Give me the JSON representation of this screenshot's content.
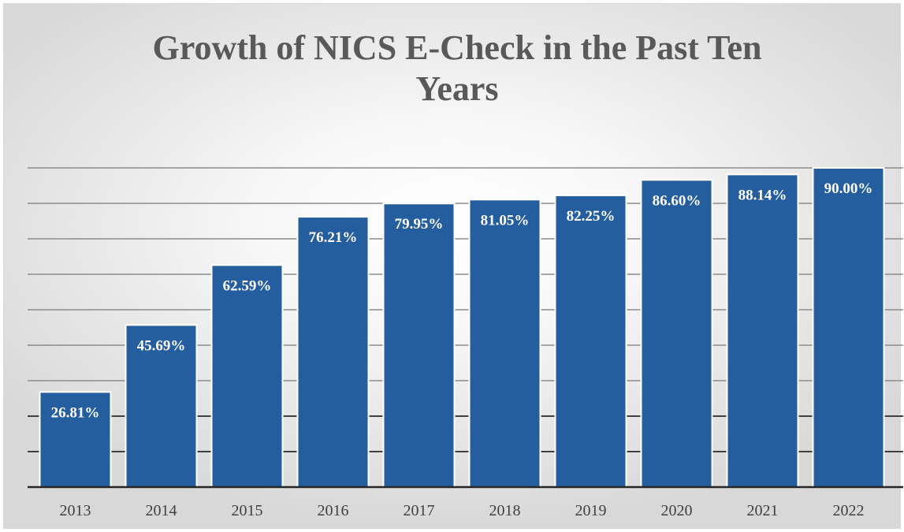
{
  "chart_data": {
    "type": "bar",
    "title": "Growth of NICS E-Check in the Past Ten Years",
    "xlabel": "",
    "ylabel": "",
    "categories": [
      "2013",
      "2014",
      "2015",
      "2016",
      "2017",
      "2018",
      "2019",
      "2020",
      "2021",
      "2022"
    ],
    "values": [
      26.81,
      45.69,
      62.59,
      76.21,
      79.95,
      81.05,
      82.25,
      86.6,
      88.14,
      90.0
    ],
    "data_labels": [
      "26.81%",
      "45.69%",
      "62.59%",
      "76.21%",
      "79.95%",
      "81.05%",
      "82.25%",
      "86.60%",
      "88.14%",
      "90.00%"
    ],
    "ylim": [
      0,
      90
    ],
    "y_gridline_step": 10,
    "grid": true,
    "legend": "none",
    "bar_color": "#255e9f",
    "bar_edge_color": "#ffffff"
  }
}
